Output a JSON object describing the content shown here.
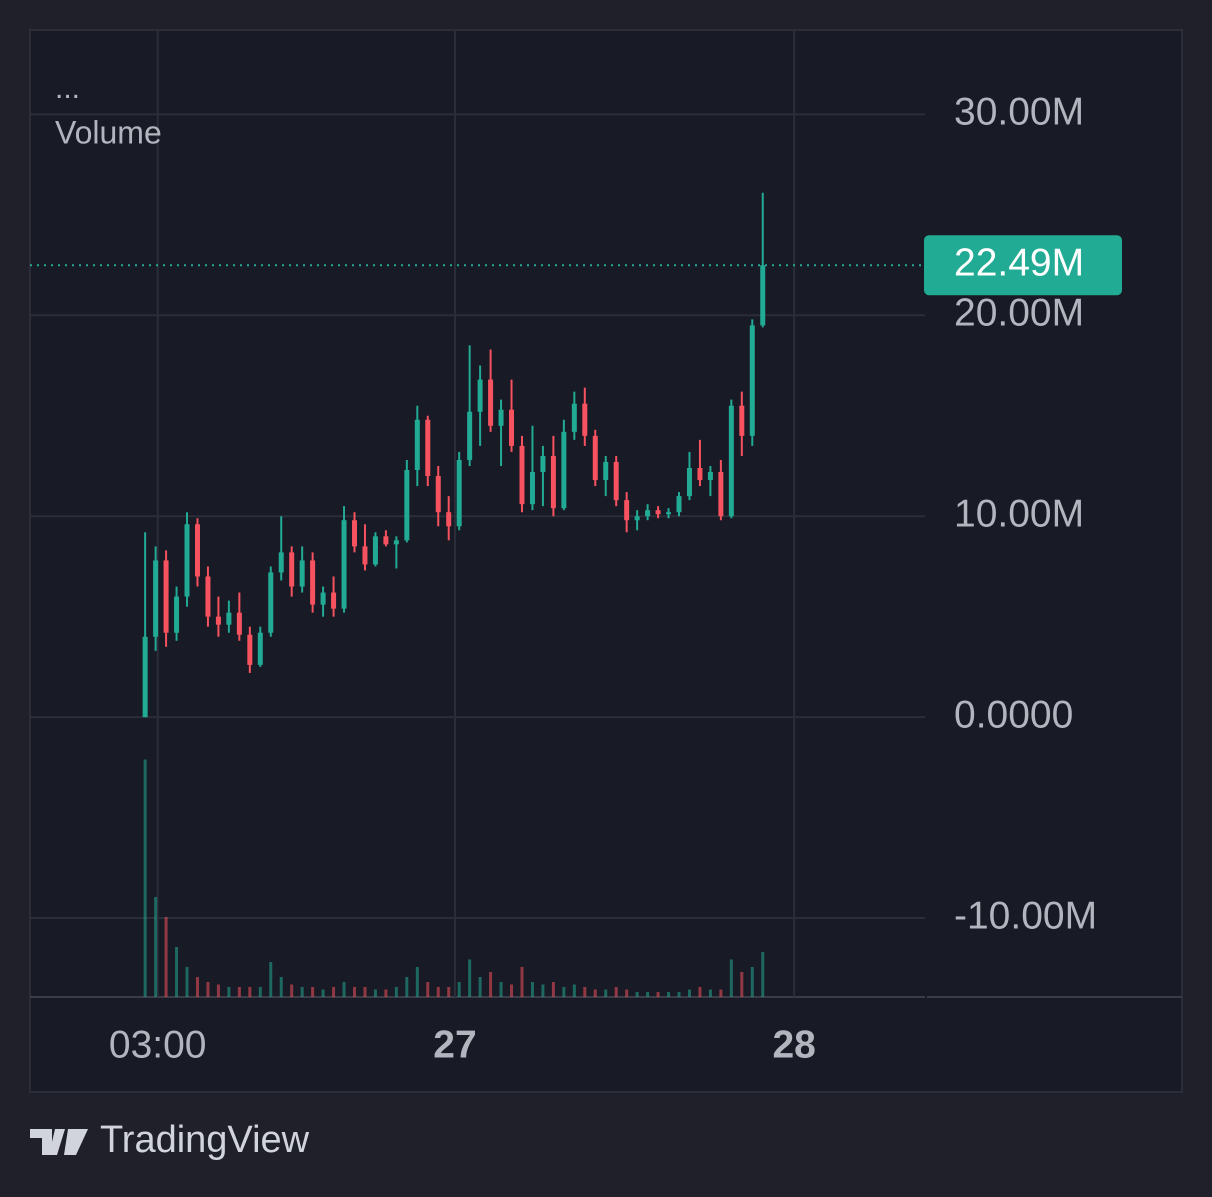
{
  "chart_data": {
    "type": "candlestick",
    "header": "...",
    "pane_label": "Volume",
    "brand": "TradingView",
    "up_color": "#22ab94",
    "down_color": "#f7525f",
    "ylim": [
      -13.93,
      34.2
    ],
    "yticks": [
      {
        "value": 30,
        "label": "30.00M"
      },
      {
        "value": 20,
        "label": "20.00M"
      },
      {
        "value": 10,
        "label": "10.00M"
      },
      {
        "value": 0,
        "label": "0.0000"
      },
      {
        "value": -10,
        "label": "-10.00M"
      }
    ],
    "xlim": [
      -11,
      74.5
    ],
    "xticks": [
      {
        "value": 1.2,
        "label": "03:00",
        "bold": false
      },
      {
        "value": 29.6,
        "label": "27",
        "bold": true
      },
      {
        "value": 62,
        "label": "28",
        "bold": true
      }
    ],
    "grid": true,
    "last_price": {
      "value": 22.49,
      "label": "22.49M"
    },
    "ohlc": [
      [
        0,
        9.2,
        0,
        4.0
      ],
      [
        4.0,
        8.5,
        3.3,
        7.8
      ],
      [
        7.8,
        8.3,
        3.5,
        4.2
      ],
      [
        4.2,
        6.5,
        3.8,
        6.0
      ],
      [
        6.0,
        10.2,
        5.5,
        9.6
      ],
      [
        9.6,
        9.9,
        6.5,
        7.0
      ],
      [
        7.0,
        7.5,
        4.5,
        5.0
      ],
      [
        5.0,
        6.0,
        4.0,
        4.6
      ],
      [
        4.6,
        5.8,
        4.2,
        5.2
      ],
      [
        5.2,
        6.2,
        3.8,
        4.1
      ],
      [
        4.1,
        4.5,
        2.2,
        2.6
      ],
      [
        2.6,
        4.5,
        2.5,
        4.2
      ],
      [
        4.2,
        7.5,
        4.0,
        7.2
      ],
      [
        7.2,
        10.0,
        6.8,
        8.2
      ],
      [
        8.2,
        8.5,
        6.0,
        6.5
      ],
      [
        6.5,
        8.5,
        6.2,
        7.8
      ],
      [
        7.8,
        8.2,
        5.2,
        5.6
      ],
      [
        5.6,
        6.5,
        5.0,
        6.2
      ],
      [
        6.2,
        7.0,
        5.0,
        5.4
      ],
      [
        5.4,
        10.5,
        5.2,
        9.8
      ],
      [
        9.8,
        10.2,
        8.2,
        8.5
      ],
      [
        8.5,
        9.6,
        7.3,
        7.6
      ],
      [
        7.6,
        9.2,
        7.5,
        9.0
      ],
      [
        9.0,
        9.3,
        8.5,
        8.6
      ],
      [
        8.6,
        9.0,
        7.4,
        8.8
      ],
      [
        8.8,
        12.8,
        8.7,
        12.3
      ],
      [
        12.3,
        15.5,
        11.5,
        14.8
      ],
      [
        14.8,
        15.0,
        11.5,
        12.0
      ],
      [
        12.0,
        12.5,
        9.5,
        10.2
      ],
      [
        10.2,
        11.0,
        8.8,
        9.5
      ],
      [
        9.5,
        13.2,
        9.3,
        12.8
      ],
      [
        12.8,
        18.5,
        12.5,
        15.2
      ],
      [
        15.2,
        17.5,
        13.5,
        16.8
      ],
      [
        16.8,
        18.3,
        14.2,
        14.5
      ],
      [
        14.5,
        15.8,
        12.5,
        15.3
      ],
      [
        15.3,
        16.8,
        13.2,
        13.5
      ],
      [
        13.5,
        14.0,
        10.2,
        10.6
      ],
      [
        10.6,
        14.5,
        10.3,
        12.2
      ],
      [
        12.2,
        13.5,
        10.5,
        13.0
      ],
      [
        13.0,
        14.0,
        10.0,
        10.4
      ],
      [
        10.4,
        14.8,
        10.3,
        14.2
      ],
      [
        14.2,
        16.2,
        13.8,
        15.6
      ],
      [
        15.6,
        16.4,
        13.5,
        14.0
      ],
      [
        14.0,
        14.3,
        11.5,
        11.8
      ],
      [
        11.8,
        13.0,
        11.0,
        12.7
      ],
      [
        12.7,
        13.0,
        10.5,
        10.8
      ],
      [
        10.8,
        11.2,
        9.2,
        9.8
      ],
      [
        9.8,
        10.3,
        9.3,
        10.0
      ],
      [
        10.0,
        10.6,
        9.8,
        10.3
      ],
      [
        10.3,
        10.5,
        9.9,
        10.1
      ],
      [
        10.1,
        10.4,
        9.9,
        10.2
      ],
      [
        10.2,
        11.2,
        10.0,
        11.0
      ],
      [
        11.0,
        13.2,
        10.8,
        12.4
      ],
      [
        12.4,
        13.8,
        11.5,
        11.8
      ],
      [
        11.8,
        12.5,
        11.0,
        12.2
      ],
      [
        12.2,
        12.8,
        9.8,
        10.0
      ],
      [
        10.0,
        15.8,
        9.9,
        15.5
      ],
      [
        15.5,
        16.2,
        13.0,
        14.0
      ],
      [
        14.0,
        19.8,
        13.5,
        19.5
      ],
      [
        19.5,
        26.1,
        19.4,
        22.49
      ]
    ],
    "volume_lim": [
      0,
      100
    ],
    "volume": [
      95,
      40,
      32,
      20,
      12,
      8,
      6,
      5,
      4,
      4,
      4,
      4,
      14,
      8,
      5,
      4,
      4,
      3,
      4,
      6,
      4,
      4,
      3,
      3,
      4,
      8,
      12,
      6,
      4,
      4,
      6,
      15,
      8,
      10,
      6,
      5,
      12,
      6,
      5,
      6,
      4,
      5,
      4,
      3,
      3,
      4,
      3,
      2,
      2,
      2,
      2,
      2,
      3,
      4,
      3,
      3,
      15,
      10,
      12,
      18
    ]
  }
}
